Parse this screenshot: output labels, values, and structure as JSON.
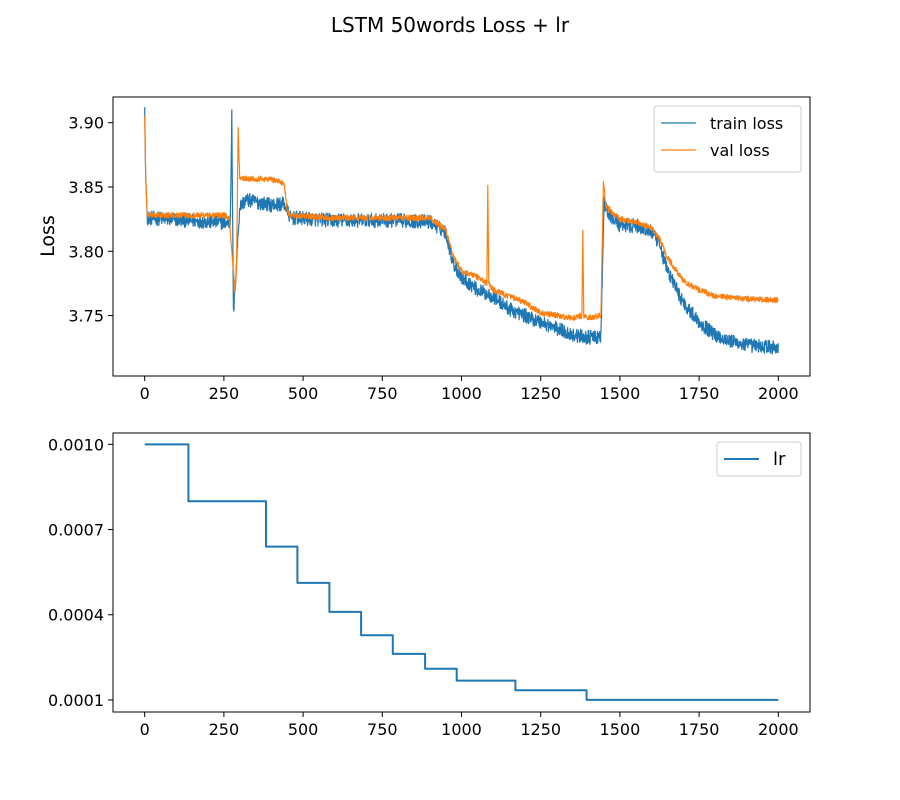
{
  "figure": {
    "title": "LSTM 50words Loss + lr"
  },
  "colors": {
    "train": "#1f77b4",
    "val": "#ff7f0e",
    "lr": "#1f77b4"
  },
  "chart_data": [
    {
      "type": "line",
      "ylabel": "Loss",
      "xlim": [
        -100,
        2100
      ],
      "ylim": [
        3.703,
        3.92
      ],
      "xticks": [
        0,
        250,
        500,
        750,
        1000,
        1250,
        1500,
        1750,
        2000
      ],
      "yticks": [
        3.75,
        3.8,
        3.85,
        3.9
      ],
      "ytick_labels": [
        "3.75",
        "3.80",
        "3.85",
        "3.90"
      ],
      "legend_position": "top-right",
      "series": [
        {
          "name": "train loss",
          "color": "#1f77b4",
          "noise": 0.0055,
          "x": [
            0,
            3,
            8,
            270,
            275,
            280,
            285,
            300,
            320,
            400,
            440,
            460,
            600,
            800,
            900,
            950,
            975,
            1000,
            1050,
            1100,
            1150,
            1200,
            1250,
            1300,
            1350,
            1400,
            1440,
            1450,
            1460,
            1500,
            1550,
            1600,
            1625,
            1650,
            1700,
            1750,
            1800,
            1850,
            1900,
            2000
          ],
          "y": [
            3.912,
            3.86,
            3.826,
            3.822,
            3.905,
            3.752,
            3.77,
            3.835,
            3.84,
            3.836,
            3.837,
            3.826,
            3.824,
            3.824,
            3.823,
            3.815,
            3.79,
            3.78,
            3.77,
            3.765,
            3.755,
            3.75,
            3.745,
            3.74,
            3.735,
            3.733,
            3.733,
            3.838,
            3.83,
            3.82,
            3.82,
            3.815,
            3.805,
            3.785,
            3.76,
            3.745,
            3.735,
            3.73,
            3.727,
            3.725
          ]
        },
        {
          "name": "val loss",
          "color": "#ff7f0e",
          "noise": 0.0022,
          "x": [
            0,
            3,
            8,
            255,
            268,
            275,
            285,
            290,
            295,
            300,
            400,
            440,
            450,
            460,
            600,
            800,
            900,
            950,
            975,
            1000,
            1050,
            1080,
            1083,
            1086,
            1100,
            1150,
            1200,
            1250,
            1300,
            1350,
            1380,
            1383,
            1386,
            1400,
            1440,
            1448,
            1455,
            1500,
            1550,
            1600,
            1625,
            1650,
            1700,
            1750,
            1800,
            1900,
            2000
          ],
          "y": [
            3.905,
            3.86,
            3.828,
            3.828,
            3.825,
            3.8,
            3.77,
            3.787,
            3.895,
            3.857,
            3.856,
            3.853,
            3.832,
            3.828,
            3.826,
            3.826,
            3.826,
            3.817,
            3.795,
            3.785,
            3.78,
            3.775,
            3.852,
            3.775,
            3.77,
            3.765,
            3.76,
            3.752,
            3.75,
            3.748,
            3.75,
            3.815,
            3.75,
            3.748,
            3.75,
            3.855,
            3.835,
            3.825,
            3.823,
            3.818,
            3.81,
            3.795,
            3.777,
            3.77,
            3.765,
            3.763,
            3.762
          ]
        }
      ]
    },
    {
      "type": "line",
      "xlim": [
        -100,
        2100
      ],
      "ylim": [
        5.75e-05,
        0.00104
      ],
      "xticks": [
        0,
        250,
        500,
        750,
        1000,
        1250,
        1500,
        1750,
        2000
      ],
      "yticks": [
        0.0001,
        0.0004,
        0.0007,
        0.001
      ],
      "ytick_labels": [
        "0.0001",
        "0.0004",
        "0.0007",
        "0.0010"
      ],
      "legend_position": "top-right",
      "series": [
        {
          "name": "lr",
          "color": "#1f77b4",
          "step": true,
          "x": [
            0,
            138,
            383,
            482,
            583,
            683,
            783,
            885,
            985,
            1170,
            1395,
            2000
          ],
          "y": [
            0.001,
            0.0008,
            0.00064,
            0.000512,
            0.00041,
            0.000328,
            0.000262,
            0.00021,
            0.000168,
            0.000134,
            0.0001,
            0.0001
          ]
        }
      ]
    }
  ]
}
